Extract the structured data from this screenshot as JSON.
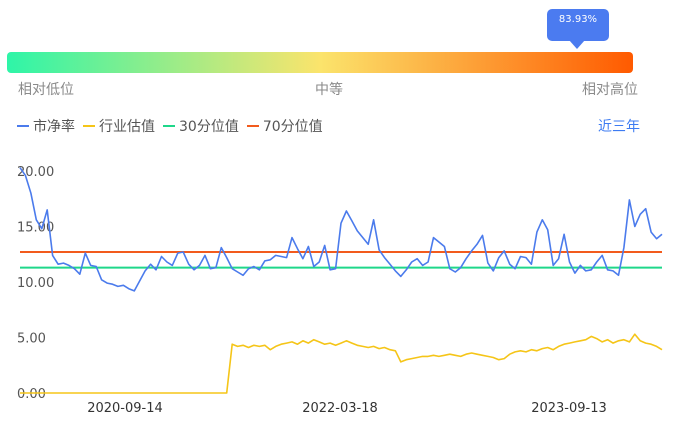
{
  "indicator": {
    "percent_label": "83.93%",
    "percent": 0.8393,
    "low_label": "相对低位",
    "mid_label": "中等",
    "high_label": "相对高位",
    "gradient_colors": [
      "#2ef5a8",
      "#fbe46c",
      "#ff5a00"
    ]
  },
  "legend": [
    {
      "label": "市净率",
      "color": "#4b7bec"
    },
    {
      "label": "行业估值",
      "color": "#f5c518"
    },
    {
      "label": "30分位值",
      "color": "#1fd78a"
    },
    {
      "label": "70分位值",
      "color": "#f25b1d"
    }
  ],
  "range_button": "近三年",
  "chart_data": {
    "type": "line",
    "yticks": [
      "20.00",
      "15.00",
      "10.00",
      "5.00",
      "0.00"
    ],
    "ylim": [
      0,
      20
    ],
    "xticks": [
      "2020-09-14",
      "2022-03-18",
      "2023-09-13"
    ],
    "grid": false,
    "series": [
      {
        "name": "市净率",
        "color": "#4b7bec",
        "values": [
          20.3,
          19.6,
          18.0,
          15.6,
          14.8,
          16.5,
          12.4,
          11.6,
          11.7,
          11.5,
          11.2,
          10.7,
          12.6,
          11.5,
          11.4,
          10.2,
          9.9,
          9.8,
          9.6,
          9.7,
          9.4,
          9.2,
          10.1,
          11.0,
          11.6,
          11.1,
          12.3,
          11.8,
          11.5,
          12.6,
          12.7,
          11.6,
          11.1,
          11.5,
          12.4,
          11.2,
          11.3,
          13.1,
          12.2,
          11.2,
          10.9,
          10.6,
          11.2,
          11.4,
          11.1,
          11.9,
          12.0,
          12.4,
          12.3,
          12.2,
          14.0,
          13.0,
          12.1,
          13.2,
          11.4,
          11.8,
          13.3,
          11.1,
          11.2,
          15.3,
          16.4,
          15.5,
          14.6,
          14.0,
          13.4,
          15.6,
          12.9,
          12.2,
          11.6,
          11.0,
          10.5,
          11.1,
          11.8,
          12.1,
          11.5,
          11.8,
          14.0,
          13.6,
          13.2,
          11.2,
          10.9,
          11.3,
          12.1,
          12.8,
          13.4,
          14.2,
          11.7,
          11.0,
          12.2,
          12.8,
          11.6,
          11.2,
          12.3,
          12.2,
          11.6,
          14.5,
          15.6,
          14.7,
          11.5,
          12.1,
          14.3,
          11.8,
          10.8,
          11.5,
          11.0,
          11.1,
          11.8,
          12.4,
          11.1,
          11.0,
          10.6,
          13.1,
          17.4,
          15.0,
          16.1,
          16.6,
          14.5,
          13.9,
          14.3
        ]
      },
      {
        "name": "行业估值",
        "color": "#f5c518",
        "values": [
          0,
          0,
          0,
          0,
          0,
          0,
          0,
          0,
          0,
          0,
          0,
          0,
          0,
          0,
          0,
          0,
          0,
          0,
          0,
          0,
          0,
          0,
          0,
          0,
          0,
          0,
          0,
          0,
          0,
          0,
          0,
          0,
          0,
          0,
          0,
          0,
          0,
          0,
          0,
          4.4,
          4.2,
          4.3,
          4.1,
          4.3,
          4.2,
          4.3,
          3.9,
          4.2,
          4.4,
          4.5,
          4.6,
          4.4,
          4.7,
          4.5,
          4.8,
          4.6,
          4.4,
          4.5,
          4.3,
          4.5,
          4.7,
          4.5,
          4.3,
          4.2,
          4.1,
          4.2,
          4.0,
          4.1,
          3.9,
          3.8,
          2.8,
          3.0,
          3.1,
          3.2,
          3.3,
          3.3,
          3.4,
          3.3,
          3.4,
          3.5,
          3.4,
          3.3,
          3.5,
          3.6,
          3.5,
          3.4,
          3.3,
          3.2,
          3.0,
          3.1,
          3.5,
          3.7,
          3.8,
          3.7,
          3.9,
          3.8,
          4.0,
          4.1,
          3.9,
          4.2,
          4.4,
          4.5,
          4.6,
          4.7,
          4.8,
          5.1,
          4.9,
          4.6,
          4.8,
          4.5,
          4.7,
          4.8,
          4.6,
          5.3,
          4.7,
          4.5,
          4.4,
          4.2,
          3.9
        ]
      },
      {
        "name": "30分位值",
        "color": "#1fd78a",
        "values": [
          11.3,
          11.3
        ]
      },
      {
        "name": "70分位值",
        "color": "#f25b1d",
        "values": [
          12.7,
          12.7
        ]
      }
    ]
  }
}
